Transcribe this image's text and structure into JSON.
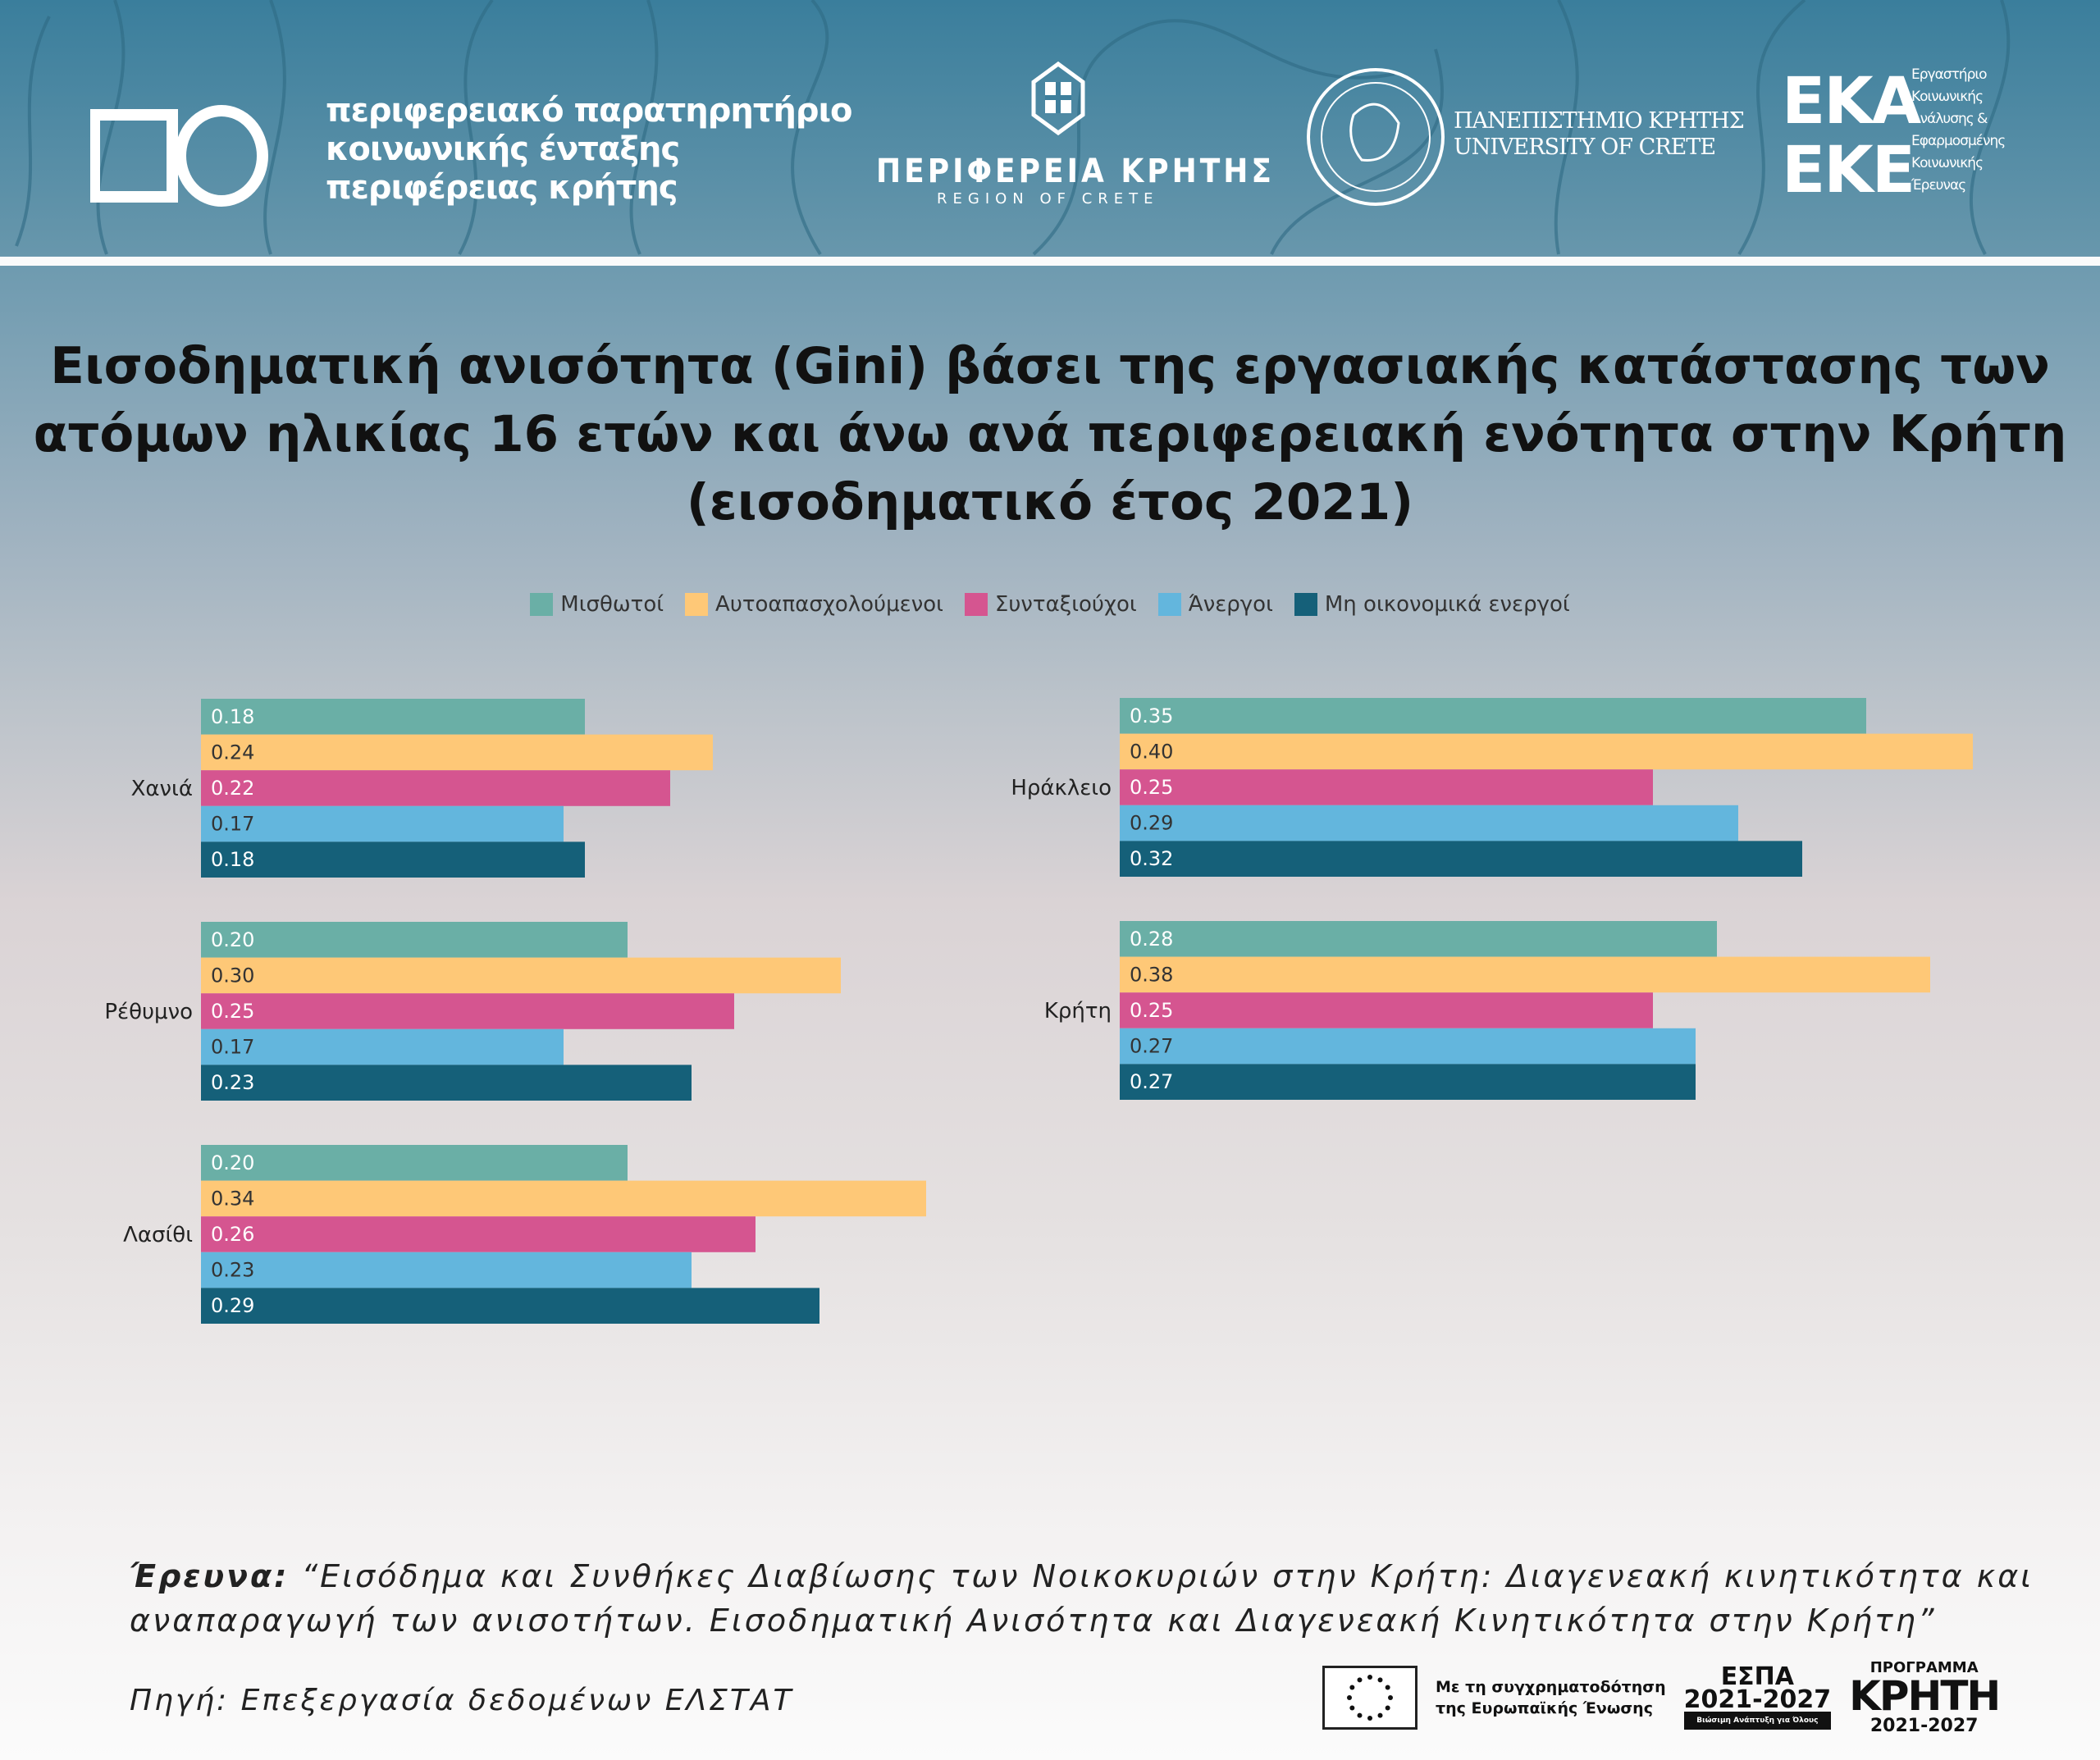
{
  "header": {
    "observatory": [
      "περιφερειακό παρατηρητήριο",
      "κοινωνικής ένταξης",
      "περιφέρειας κρήτης"
    ],
    "region_gr": "ΠΕΡΙΦΕΡΕΙΑ ΚΡΗΤΗΣ",
    "region_en": "REGION OF CRETE",
    "university": [
      "ΠΑΝΕΠΙΣΤΗΜΙΟ ΚΡΗΤΗΣ",
      "UNIVERSITY OF CRETE"
    ],
    "eka": [
      "ΕΚΑ",
      "ΕΚΕ"
    ],
    "eka_sub": [
      "Εργαστήριο",
      "Κοινωνικής",
      "Ανάλυσης &",
      "Εφαρμοσμένης",
      "Κοινωνικής",
      "Έρευνας"
    ]
  },
  "colors": {
    "Μισθωτοί": "#6aafa6",
    "Αυτοαπασχολούμενοι": "#fec877",
    "Συνταξιούχοι": "#d55590",
    "Άνεργοι": "#63b6dd",
    "Μη οικονομικά ενεργοί": "#156079"
  },
  "chart_data": {
    "type": "bar",
    "orientation": "horizontal",
    "title": [
      "Εισοδηματική ανισότητα (Gini) βάσει της εργασιακής κατάστασης των",
      "ατόμων ηλικίας 16 ετών και άνω ανά περιφερειακή ενότητα στην Κρήτη",
      "(εισοδηματικό έτος 2021)"
    ],
    "legend": [
      "Μισθωτοί",
      "Αυτοαπασχολούμενοι",
      "Συνταξιούχοι",
      "Άνεργοι",
      "Μη οικονομικά ενεργοί"
    ],
    "legend_position": "top",
    "xlim": [
      0,
      0.4
    ],
    "grid": false,
    "panels": [
      {
        "categories": [
          "Χανιά",
          "Ρέθυμνο",
          "Λασίθι"
        ],
        "series": [
          {
            "name": "Μισθωτοί",
            "values": [
              0.18,
              0.2,
              0.2
            ]
          },
          {
            "name": "Αυτοαπασχολούμενοι",
            "values": [
              0.24,
              0.3,
              0.34
            ]
          },
          {
            "name": "Συνταξιούχοι",
            "values": [
              0.22,
              0.25,
              0.26
            ]
          },
          {
            "name": "Άνεργοι",
            "values": [
              0.17,
              0.17,
              0.23
            ]
          },
          {
            "name": "Μη οικονομικά ενεργοί",
            "values": [
              0.18,
              0.23,
              0.29
            ]
          }
        ]
      },
      {
        "categories": [
          "Ηράκλειο",
          "Κρήτη"
        ],
        "series": [
          {
            "name": "Μισθωτοί",
            "values": [
              0.35,
              0.28
            ]
          },
          {
            "name": "Αυτοαπασχολούμενοι",
            "values": [
              0.4,
              0.38
            ]
          },
          {
            "name": "Συνταξιούχοι",
            "values": [
              0.25,
              0.25
            ]
          },
          {
            "name": "Άνεργοι",
            "values": [
              0.29,
              0.27
            ]
          },
          {
            "name": "Μη οικονομικά ενεργοί",
            "values": [
              0.32,
              0.27
            ]
          }
        ]
      }
    ]
  },
  "footer": {
    "survey_label": "Έρευνα:",
    "survey_text": "“Εισόδημα και Συνθήκες Διαβίωσης των Νοικοκυριών στην Κρήτη: Διαγενεακή κινητικότητα και αναπαραγωγή των ανισοτήτων. Εισοδηματική Ανισότητα και Διαγενεακή  Κινητικότητα στην Κρήτη”",
    "source": "Πηγή: Επεξεργασία δεδομένων ΕΛΣΤΑΤ",
    "eu_text": [
      "Με τη συγχρηματοδότηση",
      "της Ευρωπαϊκής Ένωσης"
    ],
    "espa": [
      "ΕΣΠΑ",
      "2021-2027",
      "Βιώσιμη Ανάπτυξη για Όλους"
    ],
    "programme": [
      "ΠΡΟΓΡΑΜΜΑ",
      "ΚΡΗΤΗ",
      "2021-2027"
    ]
  }
}
